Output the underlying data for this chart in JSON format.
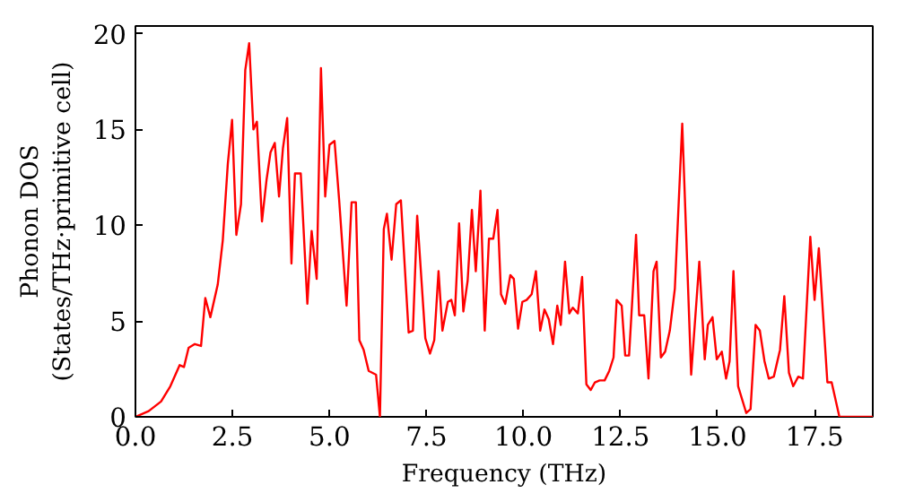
{
  "chart_data": {
    "type": "line",
    "xlabel": "Frequency (THz)",
    "ylabel": "Phonon DOS\n(States/THz·primitive cell)",
    "xlim": [
      0,
      19
    ],
    "ylim": [
      0,
      20.4
    ],
    "xticks": [
      {
        "value": 0,
        "label": "0.0"
      },
      {
        "value": 2.5,
        "label": "2.5"
      },
      {
        "value": 5,
        "label": "5.0"
      },
      {
        "value": 7.5,
        "label": "7.5"
      },
      {
        "value": 10,
        "label": "10.0"
      },
      {
        "value": 12.5,
        "label": "12.5"
      },
      {
        "value": 15,
        "label": "15.0"
      },
      {
        "value": 17.5,
        "label": "17.5"
      }
    ],
    "yticks": [
      0,
      5,
      10,
      15,
      20
    ],
    "grid": false,
    "series": [
      {
        "color": "#ff0000",
        "x": [
          0,
          0.34,
          0.66,
          0.9,
          1.14,
          1.25,
          1.37,
          1.53,
          1.69,
          1.8,
          1.93,
          2.12,
          2.25,
          2.38,
          2.49,
          2.6,
          2.72,
          2.83,
          2.93,
          3.04,
          3.13,
          3.26,
          3.38,
          3.48,
          3.59,
          3.7,
          3.8,
          3.91,
          4.02,
          4.11,
          4.26,
          4.43,
          4.54,
          4.67,
          4.78,
          4.89,
          5.0,
          5.13,
          5.25,
          5.44,
          5.57,
          5.68,
          5.77,
          5.88,
          6.01,
          6.2,
          6.3,
          6.4,
          6.48,
          6.6,
          6.72,
          6.84,
          7.04,
          7.15,
          7.26,
          7.47,
          7.59,
          7.7,
          7.81,
          7.91,
          8.05,
          8.14,
          8.23,
          8.34,
          8.45,
          8.56,
          8.67,
          8.77,
          8.89,
          9.0,
          9.11,
          9.22,
          9.33,
          9.42,
          9.53,
          9.66,
          9.75,
          9.86,
          9.97,
          10.08,
          10.21,
          10.32,
          10.43,
          10.54,
          10.65,
          10.76,
          10.87,
          10.96,
          11.07,
          11.18,
          11.27,
          11.4,
          11.51,
          11.62,
          11.73,
          11.84,
          11.96,
          12.09,
          12.21,
          12.32,
          12.4,
          12.53,
          12.62,
          12.72,
          12.9,
          12.98,
          13.11,
          13.22,
          13.35,
          13.43,
          13.54,
          13.65,
          13.77,
          13.9,
          14.09,
          14.32,
          14.53,
          14.67,
          14.75,
          14.87,
          14.98,
          15.11,
          15.22,
          15.31,
          15.41,
          15.53,
          15.74,
          15.85,
          15.98,
          16.09,
          16.21,
          16.32,
          16.45,
          16.61,
          16.72,
          16.84,
          16.95,
          17.08,
          17.2,
          17.39,
          17.5,
          17.61,
          17.83,
          17.94,
          18.14,
          19
        ],
        "values": [
          0,
          0.3,
          0.8,
          1.6,
          2.7,
          2.6,
          3.6,
          3.8,
          3.7,
          6.2,
          5.2,
          6.9,
          9.2,
          13.2,
          15.5,
          9.5,
          11.1,
          18.1,
          19.5,
          15.0,
          15.4,
          10.2,
          12.4,
          13.8,
          14.3,
          11.5,
          14.0,
          15.6,
          8.0,
          12.7,
          12.7,
          5.9,
          9.7,
          7.2,
          18.2,
          11.5,
          14.2,
          14.4,
          11.3,
          5.8,
          11.2,
          11.2,
          4.0,
          3.5,
          2.4,
          2.2,
          0,
          9.8,
          10.6,
          8.2,
          11.1,
          11.3,
          4.4,
          4.5,
          10.5,
          4.1,
          3.3,
          4.0,
          7.6,
          4.5,
          6.0,
          6.1,
          5.3,
          10.1,
          5.5,
          7.1,
          10.8,
          7.6,
          11.8,
          4.5,
          9.3,
          9.3,
          10.8,
          6.4,
          5.9,
          7.4,
          7.2,
          4.6,
          6.0,
          6.1,
          6.4,
          7.6,
          4.5,
          5.6,
          5.1,
          3.8,
          5.8,
          4.8,
          8.1,
          5.4,
          5.7,
          5.4,
          7.3,
          1.7,
          1.4,
          1.8,
          1.9,
          1.9,
          2.4,
          3.1,
          6.1,
          5.8,
          3.2,
          3.2,
          9.5,
          5.3,
          5.3,
          2.0,
          7.6,
          8.1,
          3.1,
          3.4,
          4.5,
          6.7,
          15.3,
          2.2,
          8.1,
          3.0,
          4.8,
          5.2,
          3.0,
          3.4,
          2.0,
          2.9,
          7.6,
          1.6,
          0.2,
          0.4,
          4.8,
          4.5,
          2.9,
          2.0,
          2.1,
          3.5,
          6.3,
          2.3,
          1.6,
          2.1,
          2.0,
          9.4,
          6.1,
          8.8,
          1.8,
          1.8,
          0,
          0
        ]
      }
    ]
  }
}
